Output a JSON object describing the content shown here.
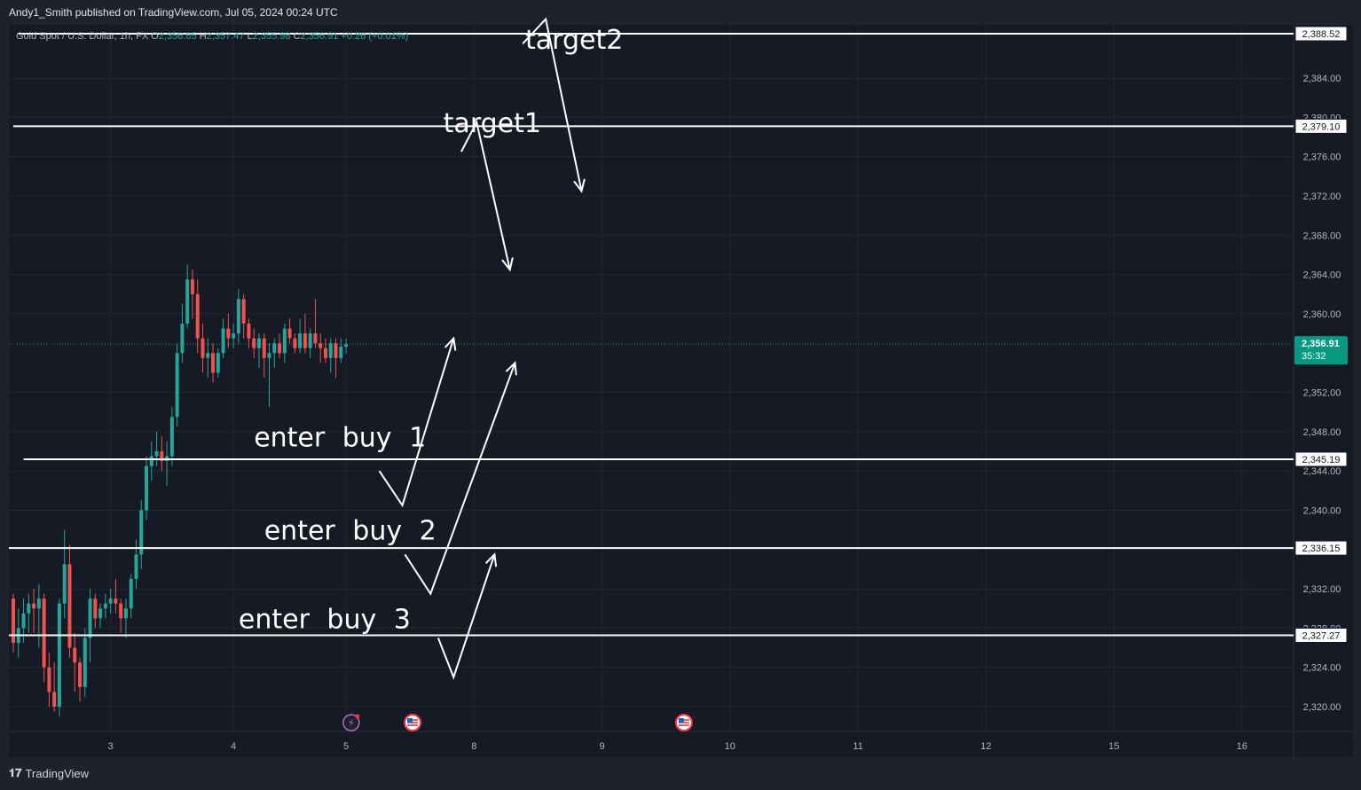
{
  "header": {
    "publisher": "Andy1_Smith published on TradingView.com, Jul 05, 2024 00:24 UTC"
  },
  "legend": {
    "symbol": "Gold Spot / U.S. Dollar, 1h, FX",
    "o_label": "O",
    "o": "2,356.65",
    "h_label": "H",
    "h": "2,357.47",
    "l_label": "L",
    "l": "2,355.98",
    "c_label": "C",
    "c": "2,356.91",
    "change": "+0.26 (+0.01%)"
  },
  "footer": {
    "brand": "TradingView"
  },
  "colors": {
    "background": "#161a25",
    "up": "#26a69a",
    "down": "#ef5350",
    "price_badge": "#089981",
    "drawing": "#ffffff",
    "grid": "#232734",
    "axis_text": "#b2b5be"
  },
  "chart_data": {
    "type": "candlestick",
    "ylim": [
      2318,
      2390
    ],
    "grid": true,
    "y_ticks": [
      {
        "value": 2384,
        "label": "2,384.00"
      },
      {
        "value": 2380,
        "label": "2,380.00"
      },
      {
        "value": 2376,
        "label": "2,376.00"
      },
      {
        "value": 2372,
        "label": "2,372.00"
      },
      {
        "value": 2368,
        "label": "2,368.00"
      },
      {
        "value": 2364,
        "label": "2,364.00"
      },
      {
        "value": 2360,
        "label": "2,360.00"
      },
      {
        "value": 2352,
        "label": "2,352.00"
      },
      {
        "value": 2348,
        "label": "2,348.00"
      },
      {
        "value": 2344,
        "label": "2,344.00"
      },
      {
        "value": 2340,
        "label": "2,340.00"
      },
      {
        "value": 2332,
        "label": "2,332.00"
      },
      {
        "value": 2328,
        "label": "2,328.00"
      },
      {
        "value": 2324,
        "label": "2,324.00"
      },
      {
        "value": 2320,
        "label": "2,320.00"
      }
    ],
    "x_ticks": [
      {
        "bar": 19,
        "label": "3"
      },
      {
        "bar": 43,
        "label": "4"
      },
      {
        "bar": 65,
        "label": "5"
      },
      {
        "bar": 90,
        "label": "8"
      },
      {
        "bar": 115,
        "label": "9"
      },
      {
        "bar": 140,
        "label": "10"
      },
      {
        "bar": 165,
        "label": "11"
      },
      {
        "bar": 190,
        "label": "12"
      },
      {
        "bar": 215,
        "label": "15"
      },
      {
        "bar": 240,
        "label": "16"
      }
    ],
    "x_range": [
      -1.0,
      247.5
    ],
    "candles": [
      [
        2331.0,
        2331.5,
        2325.5,
        2326.5
      ],
      [
        2326.5,
        2330.0,
        2325.0,
        2328.0
      ],
      [
        2328.0,
        2331.0,
        2326.5,
        2329.5
      ],
      [
        2329.5,
        2331.5,
        2327.5,
        2330.5
      ],
      [
        2330.5,
        2332.0,
        2327.5,
        2330.0
      ],
      [
        2330.0,
        2332.5,
        2326.0,
        2331.0
      ],
      [
        2331.0,
        2331.5,
        2322.5,
        2324.0
      ],
      [
        2324.0,
        2325.5,
        2320.0,
        2321.5
      ],
      [
        2321.5,
        2324.5,
        2319.5,
        2320.0
      ],
      [
        2320.0,
        2331.0,
        2319.0,
        2330.5
      ],
      [
        2330.5,
        2338.0,
        2329.0,
        2334.5
      ],
      [
        2334.5,
        2336.5,
        2325.0,
        2326.0
      ],
      [
        2326.0,
        2327.5,
        2321.5,
        2324.5
      ],
      [
        2324.5,
        2325.0,
        2320.5,
        2322.0
      ],
      [
        2322.0,
        2328.0,
        2321.0,
        2327.0
      ],
      [
        2327.0,
        2332.0,
        2324.5,
        2331.0
      ],
      [
        2331.0,
        2331.5,
        2328.0,
        2329.0
      ],
      [
        2329.0,
        2330.5,
        2328.0,
        2330.0
      ],
      [
        2330.0,
        2331.5,
        2329.0,
        2330.5
      ],
      [
        2330.5,
        2332.0,
        2329.5,
        2331.0
      ],
      [
        2331.0,
        2333.0,
        2329.5,
        2330.5
      ],
      [
        2330.5,
        2331.0,
        2327.5,
        2329.0
      ],
      [
        2329.0,
        2331.0,
        2327.0,
        2330.0
      ],
      [
        2330.0,
        2333.5,
        2329.0,
        2333.0
      ],
      [
        2333.0,
        2337.0,
        2332.0,
        2335.5
      ],
      [
        2335.5,
        2341.0,
        2334.0,
        2340.0
      ],
      [
        2340.0,
        2345.5,
        2339.0,
        2344.5
      ],
      [
        2344.5,
        2347.0,
        2343.0,
        2345.5
      ],
      [
        2345.5,
        2348.0,
        2344.5,
        2346.0
      ],
      [
        2346.0,
        2347.5,
        2344.0,
        2345.0
      ],
      [
        2345.0,
        2347.0,
        2342.5,
        2345.5
      ],
      [
        2345.5,
        2350.5,
        2344.5,
        2349.5
      ],
      [
        2349.5,
        2357.0,
        2348.5,
        2356.0
      ],
      [
        2356.0,
        2361.0,
        2355.0,
        2359.0
      ],
      [
        2359.0,
        2365.0,
        2358.5,
        2363.5
      ],
      [
        2363.5,
        2364.5,
        2359.5,
        2362.0
      ],
      [
        2362.0,
        2363.5,
        2356.0,
        2357.5
      ],
      [
        2357.5,
        2359.0,
        2354.0,
        2355.5
      ],
      [
        2355.5,
        2357.5,
        2353.5,
        2356.0
      ],
      [
        2356.0,
        2357.0,
        2353.0,
        2354.0
      ],
      [
        2354.0,
        2356.5,
        2353.5,
        2356.0
      ],
      [
        2356.0,
        2359.5,
        2355.5,
        2358.5
      ],
      [
        2358.5,
        2360.0,
        2356.5,
        2357.5
      ],
      [
        2357.5,
        2359.0,
        2356.5,
        2358.0
      ],
      [
        2358.0,
        2362.5,
        2357.0,
        2361.5
      ],
      [
        2361.5,
        2362.0,
        2357.5,
        2359.0
      ],
      [
        2359.0,
        2359.5,
        2356.5,
        2357.5
      ],
      [
        2357.5,
        2358.5,
        2355.5,
        2356.5
      ],
      [
        2356.5,
        2358.0,
        2354.5,
        2357.5
      ],
      [
        2357.5,
        2358.0,
        2353.5,
        2355.5
      ],
      [
        2355.5,
        2357.0,
        2350.5,
        2356.0
      ],
      [
        2356.0,
        2357.5,
        2354.5,
        2357.0
      ],
      [
        2357.0,
        2358.0,
        2355.5,
        2356.0
      ],
      [
        2356.0,
        2359.0,
        2355.0,
        2358.5
      ],
      [
        2358.5,
        2359.5,
        2357.0,
        2357.5
      ],
      [
        2357.5,
        2358.0,
        2356.0,
        2356.5
      ],
      [
        2356.5,
        2359.5,
        2356.0,
        2358.0
      ],
      [
        2358.0,
        2360.0,
        2356.0,
        2356.5
      ],
      [
        2356.5,
        2358.5,
        2355.5,
        2358.0
      ],
      [
        2358.0,
        2361.5,
        2356.5,
        2357.0
      ],
      [
        2357.0,
        2358.0,
        2355.0,
        2356.5
      ],
      [
        2356.5,
        2357.5,
        2355.0,
        2355.5
      ],
      [
        2355.5,
        2357.5,
        2354.0,
        2357.0
      ],
      [
        2357.0,
        2357.5,
        2353.5,
        2355.5
      ],
      [
        2355.5,
        2357.5,
        2355.0,
        2356.65
      ],
      [
        2356.65,
        2357.47,
        2355.98,
        2356.91
      ]
    ],
    "horizontal_lines": [
      {
        "value": 2388.52,
        "label": "2,388.52",
        "from_bar": 1
      },
      {
        "value": 2379.1,
        "label": "2,379.10",
        "from_bar": 0
      },
      {
        "value": 2345.19,
        "label": "2,345.19",
        "from_bar": 2
      },
      {
        "value": 2336.15,
        "label": "2,336.15",
        "from_bar": -1
      },
      {
        "value": 2327.27,
        "label": "2,327.27",
        "from_bar": -1
      }
    ],
    "last_price": {
      "value": 2356.91,
      "label": "2,356.91",
      "countdown": "35:32"
    },
    "annotations": [
      {
        "text": "target2",
        "bar": 100,
        "value": 2387.0
      },
      {
        "text": "target1",
        "bar": 84,
        "value": 2378.5
      },
      {
        "text": "enter buy 1",
        "bar": 47,
        "value": 2346.5
      },
      {
        "text": "enter buy 2",
        "bar": 49,
        "value": 2337.0
      },
      {
        "text": "enter buy 3",
        "bar": 44,
        "value": 2328.0
      }
    ],
    "arrows": [
      {
        "points": [
          [
            99.5,
            2387.5
          ],
          [
            104.0,
            2390.0
          ],
          [
            111.0,
            2372.5
          ]
        ]
      },
      {
        "points": [
          [
            87.5,
            2376.5
          ],
          [
            90.5,
            2379.5
          ],
          [
            97.0,
            2364.5
          ]
        ]
      },
      {
        "points": [
          [
            71.5,
            2344.0
          ],
          [
            76.0,
            2340.5
          ],
          [
            86.0,
            2357.5
          ]
        ]
      },
      {
        "points": [
          [
            76.5,
            2335.5
          ],
          [
            81.5,
            2331.5
          ],
          [
            98.0,
            2355.0
          ]
        ]
      },
      {
        "points": [
          [
            83.0,
            2327.0
          ],
          [
            86.0,
            2323.0
          ],
          [
            94.0,
            2335.5
          ]
        ]
      }
    ],
    "events": [
      {
        "bar": 66,
        "kind": "earnings",
        "icon": "lightning-event-icon"
      },
      {
        "bar": 78,
        "kind": "economic",
        "icon": "us-flag-event-icon"
      },
      {
        "bar": 131,
        "kind": "economic",
        "icon": "us-flag-event-icon"
      }
    ]
  }
}
